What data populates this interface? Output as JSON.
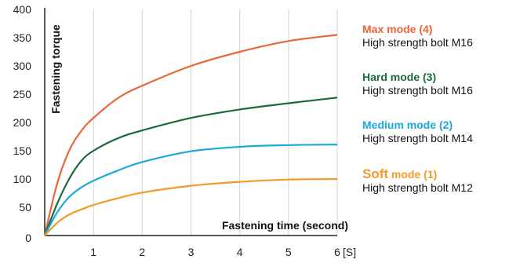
{
  "chart_data": {
    "type": "line",
    "xlabel": "Fastening time (second)",
    "ylabel": "Fastening torque",
    "x_unit": "[S]",
    "xlim": [
      0,
      6
    ],
    "ylim": [
      0,
      400
    ],
    "x_ticks": [
      "1",
      "2",
      "3",
      "4",
      "5",
      "6"
    ],
    "y_ticks": [
      "0",
      "50",
      "100",
      "150",
      "200",
      "250",
      "300",
      "350",
      "400"
    ],
    "grid": "vertical",
    "legend_placement": "right",
    "series": [
      {
        "name": "Max mode (4)",
        "name_lead": "Max",
        "name_tail": " mode (4)",
        "desc": "High strength bolt M16",
        "color": "#e8663a",
        "x": [
          0,
          0.25,
          0.5,
          0.75,
          1,
          1.5,
          2,
          3,
          4,
          5,
          6
        ],
        "y": [
          0,
          90,
          150,
          185,
          208,
          243,
          265,
          300,
          325,
          344,
          355
        ]
      },
      {
        "name": "Hard mode (3)",
        "name_lead": "Hard",
        "name_tail": " mode (3)",
        "desc": "High strength bolt M16",
        "color": "#1a6b3a",
        "x": [
          0,
          0.25,
          0.5,
          0.75,
          1,
          1.5,
          2,
          3,
          4,
          5,
          6
        ],
        "y": [
          0,
          55,
          100,
          132,
          150,
          172,
          186,
          208,
          223,
          234,
          244
        ]
      },
      {
        "name": "Medium mode (2)",
        "name_lead": "Medium",
        "name_tail": " mode (2)",
        "desc": "High strength bolt M14",
        "color": "#1aa9dd",
        "x": [
          0,
          0.25,
          0.5,
          0.75,
          1,
          1.5,
          2,
          3,
          4,
          5,
          6
        ],
        "y": [
          0,
          40,
          68,
          85,
          97,
          115,
          130,
          149,
          157,
          160,
          161
        ]
      },
      {
        "name": "Soft mode (1)",
        "name_lead": "Soft",
        "name_tail": " mode (1)",
        "desc": "High strength bolt M12",
        "color": "#f39a2a",
        "x": [
          0,
          0.25,
          0.5,
          0.75,
          1,
          1.5,
          2,
          3,
          4,
          5,
          6
        ],
        "y": [
          0,
          22,
          37,
          46,
          54,
          66,
          76,
          88,
          95,
          99,
          100
        ]
      }
    ]
  }
}
